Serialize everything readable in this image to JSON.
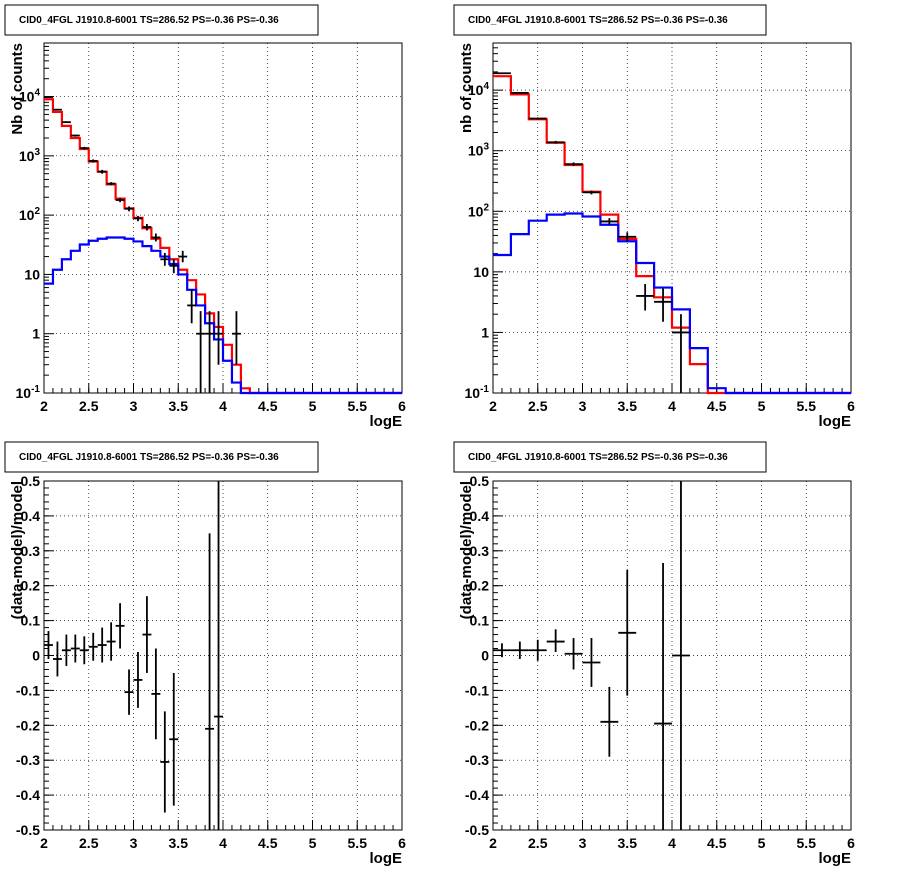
{
  "chart_data": [
    {
      "type": "line",
      "title": "CID0_4FGL J1910.8-6001 TS=286.52 PS=-0.36 PS=-0.36",
      "xlabel": "logE",
      "ylabel": "Nb of counts",
      "xlim": [
        2,
        6
      ],
      "ylim": [
        0.1,
        80000
      ],
      "yscale": "log",
      "grid": true,
      "x_ticks": [
        "2",
        "2.5",
        "3",
        "3.5",
        "4",
        "4.5",
        "5",
        "5.5",
        "6"
      ],
      "y_ticks": [
        "10^-1",
        "1",
        "10",
        "10^2",
        "10^3",
        "10^4"
      ],
      "series": [
        {
          "color": "#ff0000",
          "edges": [
            2.0,
            2.1,
            2.2,
            2.3,
            2.4,
            2.5,
            2.6,
            2.7,
            2.8,
            2.9,
            3.0,
            3.1,
            3.2,
            3.3,
            3.4,
            3.5,
            3.6,
            3.7,
            3.8,
            3.9,
            4.0,
            4.1,
            4.2,
            4.3,
            4.4,
            4.5,
            4.6,
            4.7,
            4.8,
            4.9,
            5.0,
            5.1,
            5.2,
            5.3,
            5.4,
            5.5,
            5.6,
            5.7,
            5.8,
            5.9,
            6.0
          ],
          "values": [
            9000,
            5500,
            3200,
            2000,
            1300,
            800,
            540,
            330,
            190,
            130,
            90,
            60,
            40,
            28,
            18,
            12,
            8,
            4.6,
            2.2,
            1.3,
            0.65,
            0.3,
            0.12,
            0.1,
            0.1,
            0.1,
            0.1,
            0.1,
            0.1,
            0.1,
            0.1,
            0.1,
            0.1,
            0.1,
            0.1,
            0.1,
            0.1,
            0.1,
            0.1,
            0.1
          ]
        },
        {
          "color": "#0000ff",
          "edges": [
            2.0,
            2.1,
            2.2,
            2.3,
            2.4,
            2.5,
            2.6,
            2.7,
            2.8,
            2.9,
            3.0,
            3.1,
            3.2,
            3.3,
            3.4,
            3.5,
            3.6,
            3.7,
            3.8,
            3.9,
            4.0,
            4.1,
            4.2,
            4.3,
            4.4,
            4.5,
            4.6,
            4.7,
            4.8,
            4.9,
            5.0,
            5.1,
            5.2,
            5.3,
            5.4,
            5.5,
            5.6,
            5.7,
            5.8,
            5.9,
            6.0
          ],
          "values": [
            7,
            12,
            18,
            25,
            32,
            37,
            40,
            42,
            42,
            40,
            36,
            30,
            25,
            20,
            15,
            10,
            5.5,
            3,
            1.5,
            0.8,
            0.35,
            0.15,
            0.1,
            0.1,
            0.1,
            0.1,
            0.1,
            0.1,
            0.1,
            0.1,
            0.1,
            0.1,
            0.1,
            0.1,
            0.1,
            0.1,
            0.1,
            0.1,
            0.1,
            0.1
          ]
        }
      ],
      "points": [
        {
          "x": 2.05,
          "y": 9800,
          "lo": 9600,
          "hi": 10000,
          "xerr": 0.05
        },
        {
          "x": 2.15,
          "y": 6000,
          "lo": 5850,
          "hi": 6150,
          "xerr": 0.05
        },
        {
          "x": 2.25,
          "y": 3700,
          "lo": 3580,
          "hi": 3820,
          "xerr": 0.05
        },
        {
          "x": 2.35,
          "y": 2200,
          "lo": 2110,
          "hi": 2290,
          "xerr": 0.05
        },
        {
          "x": 2.45,
          "y": 1350,
          "lo": 1280,
          "hi": 1420,
          "xerr": 0.05
        },
        {
          "x": 2.55,
          "y": 820,
          "lo": 770,
          "hi": 870,
          "xerr": 0.05
        },
        {
          "x": 2.65,
          "y": 540,
          "lo": 500,
          "hi": 580,
          "xerr": 0.05
        },
        {
          "x": 2.75,
          "y": 340,
          "lo": 320,
          "hi": 360,
          "xerr": 0.05
        },
        {
          "x": 2.85,
          "y": 180,
          "lo": 165,
          "hi": 195,
          "xerr": 0.05
        },
        {
          "x": 2.95,
          "y": 128,
          "lo": 116,
          "hi": 140,
          "xerr": 0.05
        },
        {
          "x": 3.05,
          "y": 88,
          "lo": 79,
          "hi": 97,
          "xerr": 0.05
        },
        {
          "x": 3.15,
          "y": 63,
          "lo": 55,
          "hi": 71,
          "xerr": 0.05
        },
        {
          "x": 3.25,
          "y": 42,
          "lo": 36,
          "hi": 49,
          "xerr": 0.05
        },
        {
          "x": 3.35,
          "y": 18,
          "lo": 14,
          "hi": 23,
          "xerr": 0.05
        },
        {
          "x": 3.45,
          "y": 14,
          "lo": 10.5,
          "hi": 18,
          "xerr": 0.05
        },
        {
          "x": 3.55,
          "y": 20,
          "lo": 16,
          "hi": 25,
          "xerr": 0.05
        },
        {
          "x": 3.65,
          "y": 3,
          "lo": 1.5,
          "hi": 5.5,
          "xerr": 0.05
        },
        {
          "x": 3.75,
          "y": 1,
          "lo": 0.1,
          "hi": 2.4,
          "xerr": 0.05
        },
        {
          "x": 3.85,
          "y": 1,
          "lo": 0.1,
          "hi": 2.4,
          "xerr": 0.05
        },
        {
          "x": 3.95,
          "y": 1,
          "lo": 0.3,
          "hi": 2.4,
          "xerr": 0.05
        },
        {
          "x": 4.15,
          "y": 1,
          "lo": 0.3,
          "hi": 2.4,
          "xerr": 0.05
        }
      ]
    },
    {
      "type": "line",
      "title": "CID0_4FGL J1910.8-6001 TS=286.52 PS=-0.36 PS=-0.36",
      "xlabel": "logE",
      "ylabel": "nb of counts",
      "xlim": [
        2,
        6
      ],
      "ylim": [
        0.1,
        60000
      ],
      "yscale": "log",
      "grid": true,
      "x_ticks": [
        "2",
        "2.5",
        "3",
        "3.5",
        "4",
        "4.5",
        "5",
        "5.5",
        "6"
      ],
      "y_ticks": [
        "10^-1",
        "1",
        "10",
        "10^2",
        "10^3",
        "10^4"
      ],
      "series": [
        {
          "color": "#ff0000",
          "edges": [
            2.0,
            2.2,
            2.4,
            2.6,
            2.8,
            3.0,
            3.2,
            3.4,
            3.6,
            3.8,
            4.0,
            4.2,
            4.4,
            4.6,
            4.8,
            5.0,
            5.2,
            5.4,
            5.6,
            5.8,
            6.0
          ],
          "values": [
            17000,
            8500,
            3300,
            1350,
            580,
            210,
            88,
            35,
            8.5,
            3.8,
            1.2,
            0.3,
            0.1,
            0.1,
            0.1,
            0.1,
            0.1,
            0.1,
            0.1,
            0.1
          ]
        },
        {
          "color": "#0000ff",
          "edges": [
            2.0,
            2.2,
            2.4,
            2.6,
            2.8,
            3.0,
            3.2,
            3.4,
            3.6,
            3.8,
            4.0,
            4.2,
            4.4,
            4.6,
            4.8,
            5.0,
            5.2,
            5.4,
            5.6,
            5.8,
            6.0
          ],
          "values": [
            19,
            42,
            70,
            88,
            92,
            82,
            60,
            32,
            14,
            5.5,
            2.4,
            0.55,
            0.12,
            0.1,
            0.1,
            0.1,
            0.1,
            0.1,
            0.1,
            0.1
          ]
        }
      ],
      "points": [
        {
          "x": 2.1,
          "y": 19000,
          "lo": 18700,
          "hi": 19300,
          "xerr": 0.1
        },
        {
          "x": 2.3,
          "y": 9000,
          "lo": 8800,
          "hi": 9200,
          "xerr": 0.1
        },
        {
          "x": 2.5,
          "y": 3400,
          "lo": 3280,
          "hi": 3520,
          "xerr": 0.1
        },
        {
          "x": 2.7,
          "y": 1380,
          "lo": 1310,
          "hi": 1450,
          "xerr": 0.1
        },
        {
          "x": 2.9,
          "y": 600,
          "lo": 560,
          "hi": 640,
          "xerr": 0.1
        },
        {
          "x": 3.1,
          "y": 205,
          "lo": 190,
          "hi": 220,
          "xerr": 0.1
        },
        {
          "x": 3.3,
          "y": 68,
          "lo": 60,
          "hi": 77,
          "xerr": 0.1
        },
        {
          "x": 3.5,
          "y": 38,
          "lo": 32,
          "hi": 45,
          "xerr": 0.1
        },
        {
          "x": 3.7,
          "y": 4,
          "lo": 2.3,
          "hi": 6.3,
          "xerr": 0.1
        },
        {
          "x": 3.9,
          "y": 3.2,
          "lo": 1.5,
          "hi": 5.3,
          "xerr": 0.1
        },
        {
          "x": 4.1,
          "y": 1,
          "lo": 0.1,
          "hi": 2,
          "xerr": 0.1
        }
      ]
    },
    {
      "type": "scatter",
      "title": "CID0_4FGL J1910.8-6001 TS=286.52 PS=-0.36 PS=-0.36",
      "xlabel": "logE",
      "ylabel": "(data-model)/model",
      "xlim": [
        2,
        6
      ],
      "ylim": [
        -0.5,
        0.5
      ],
      "grid": true,
      "x_ticks": [
        "2",
        "2.5",
        "3",
        "3.5",
        "4",
        "4.5",
        "5",
        "5.5",
        "6"
      ],
      "y_ticks": [
        "-0.5",
        "-0.4",
        "-0.3",
        "-0.2",
        "-0.1",
        "0",
        "0.1",
        "0.2",
        "0.3",
        "0.4",
        "0.5"
      ],
      "points": [
        {
          "x": 2.05,
          "y": 0.03,
          "lo": -0.01,
          "hi": 0.07,
          "xerr": 0.05
        },
        {
          "x": 2.15,
          "y": -0.01,
          "lo": -0.06,
          "hi": 0.04,
          "xerr": 0.05
        },
        {
          "x": 2.25,
          "y": 0.015,
          "lo": -0.03,
          "hi": 0.06,
          "xerr": 0.05
        },
        {
          "x": 2.35,
          "y": 0.02,
          "lo": -0.02,
          "hi": 0.06,
          "xerr": 0.05
        },
        {
          "x": 2.45,
          "y": 0.015,
          "lo": -0.025,
          "hi": 0.055,
          "xerr": 0.05
        },
        {
          "x": 2.55,
          "y": 0.025,
          "lo": -0.015,
          "hi": 0.065,
          "xerr": 0.05
        },
        {
          "x": 2.65,
          "y": 0.03,
          "lo": -0.02,
          "hi": 0.08,
          "xerr": 0.05
        },
        {
          "x": 2.75,
          "y": 0.04,
          "lo": -0.015,
          "hi": 0.095,
          "xerr": 0.05
        },
        {
          "x": 2.85,
          "y": 0.085,
          "lo": 0.02,
          "hi": 0.15,
          "xerr": 0.05
        },
        {
          "x": 2.95,
          "y": -0.105,
          "lo": -0.17,
          "hi": -0.04,
          "xerr": 0.05
        },
        {
          "x": 3.05,
          "y": -0.07,
          "lo": -0.15,
          "hi": 0.01,
          "xerr": 0.05
        },
        {
          "x": 3.15,
          "y": 0.06,
          "lo": -0.05,
          "hi": 0.17,
          "xerr": 0.05
        },
        {
          "x": 3.25,
          "y": -0.11,
          "lo": -0.24,
          "hi": 0.02,
          "xerr": 0.05
        },
        {
          "x": 3.35,
          "y": -0.305,
          "lo": -0.45,
          "hi": -0.16,
          "xerr": 0.05
        },
        {
          "x": 3.45,
          "y": -0.24,
          "lo": -0.43,
          "hi": -0.05,
          "xerr": 0.05
        },
        {
          "x": 3.85,
          "y": -0.21,
          "lo": -0.5,
          "hi": 0.35,
          "xerr": 0.05
        },
        {
          "x": 3.95,
          "y": -0.175,
          "lo": -0.5,
          "hi": 0.5,
          "xerr": 0.05
        }
      ]
    },
    {
      "type": "scatter",
      "title": "CID0_4FGL J1910.8-6001 TS=286.52 PS=-0.36 PS=-0.36",
      "xlabel": "logE",
      "ylabel": "(data-model)/model",
      "xlim": [
        2,
        6
      ],
      "ylim": [
        -0.5,
        0.5
      ],
      "grid": true,
      "x_ticks": [
        "2",
        "2.5",
        "3",
        "3.5",
        "4",
        "4.5",
        "5",
        "5.5",
        "6"
      ],
      "y_ticks": [
        "-0.5",
        "-0.4",
        "-0.3",
        "-0.2",
        "-0.1",
        "0",
        "0.1",
        "0.2",
        "0.3",
        "0.4",
        "0.5"
      ],
      "points": [
        {
          "x": 2.1,
          "y": 0.015,
          "lo": -0.005,
          "hi": 0.035,
          "xerr": 0.1
        },
        {
          "x": 2.3,
          "y": 0.015,
          "lo": -0.01,
          "hi": 0.04,
          "xerr": 0.1
        },
        {
          "x": 2.5,
          "y": 0.015,
          "lo": -0.015,
          "hi": 0.045,
          "xerr": 0.1
        },
        {
          "x": 2.7,
          "y": 0.04,
          "lo": 0.01,
          "hi": 0.075,
          "xerr": 0.1
        },
        {
          "x": 2.9,
          "y": 0.005,
          "lo": -0.04,
          "hi": 0.05,
          "xerr": 0.1
        },
        {
          "x": 3.1,
          "y": -0.02,
          "lo": -0.09,
          "hi": 0.05,
          "xerr": 0.1
        },
        {
          "x": 3.3,
          "y": -0.19,
          "lo": -0.29,
          "hi": -0.09,
          "xerr": 0.1
        },
        {
          "x": 3.5,
          "y": 0.065,
          "lo": -0.115,
          "hi": 0.245,
          "xerr": 0.1
        },
        {
          "x": 3.9,
          "y": -0.195,
          "lo": -0.5,
          "hi": 0.265,
          "xerr": 0.1
        },
        {
          "x": 4.1,
          "y": 0.0,
          "lo": -0.5,
          "hi": 0.5,
          "xerr": 0.1
        }
      ]
    }
  ]
}
